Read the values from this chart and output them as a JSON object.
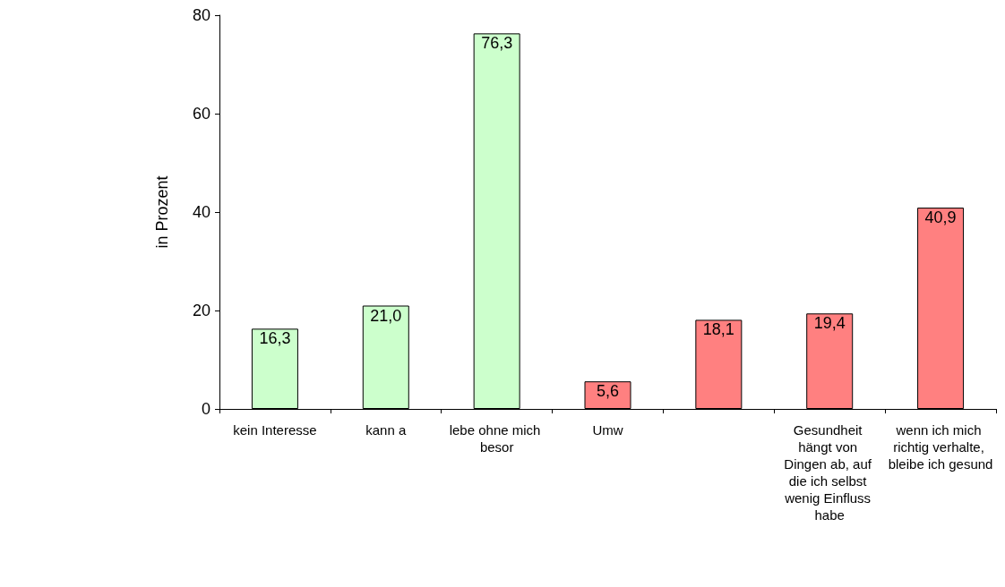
{
  "chart_data": {
    "type": "bar",
    "ylabel": "in Prozent",
    "categories": [
      "kein Interesse",
      "kann a",
      "lebe ohne mich besor",
      "Umw",
      null,
      "Gesundheit hängt von Dingen ab, auf die ich selbst wenig Einfluss habe",
      "wenn ich mich richtig verhalte, bleibe ich gesund"
    ],
    "values": [
      16.3,
      21.0,
      76.3,
      5.6,
      18.1,
      19.4,
      40.9
    ],
    "value_labels": [
      "16,3",
      "21,0",
      "76,3",
      "5,6",
      "18,1",
      "19,4",
      "40,9"
    ],
    "colors": [
      "#ccffcc",
      "#ccffcc",
      "#ccffcc",
      "#ff8080",
      "#ff8080",
      "#ff8080",
      "#ff8080"
    ],
    "ylim": [
      0,
      80
    ],
    "yticks": [
      0,
      20,
      40,
      60,
      80
    ],
    "grid": false
  }
}
